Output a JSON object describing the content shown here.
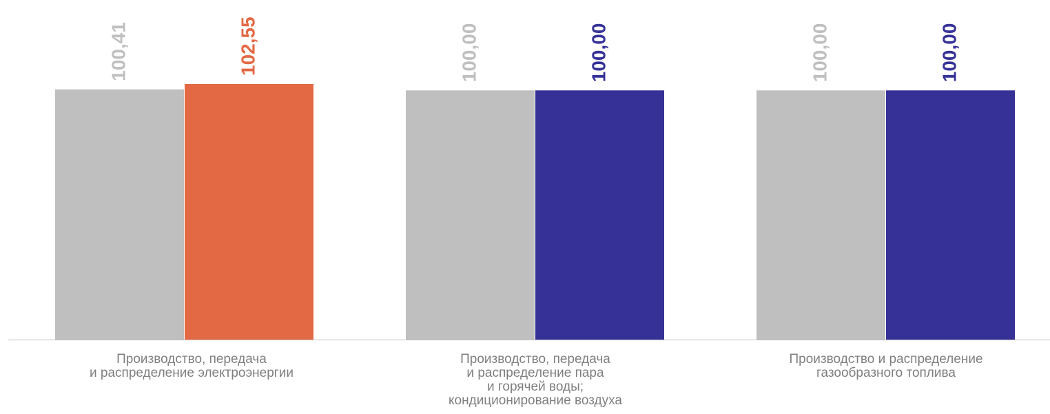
{
  "chart_data": {
    "type": "bar",
    "categories": [
      [
        "Производство, передача",
        "и распределение электроэнергии"
      ],
      [
        "Производство, передача",
        "и распределение пара",
        "и горячей воды;",
        "кондиционирование воздуха"
      ],
      [
        "Производство и распределение",
        "газообразного топлива"
      ]
    ],
    "series": [
      {
        "values": [
          100.41,
          100.0,
          100.0
        ],
        "labels": [
          "100,41",
          "100,00",
          "100,00"
        ],
        "color": "#bfbfbf",
        "label_color": "#bfbfbf"
      },
      {
        "values": [
          102.55,
          100.0,
          100.0
        ],
        "labels": [
          "102,55",
          "100,00",
          "100,00"
        ],
        "colors": [
          "#e36945",
          "#353197",
          "#353197"
        ],
        "label_colors": [
          "#e36945",
          "#353197",
          "#353197"
        ]
      }
    ],
    "ylim": [
      0,
      102.55
    ],
    "grid": false,
    "legend": "none"
  }
}
